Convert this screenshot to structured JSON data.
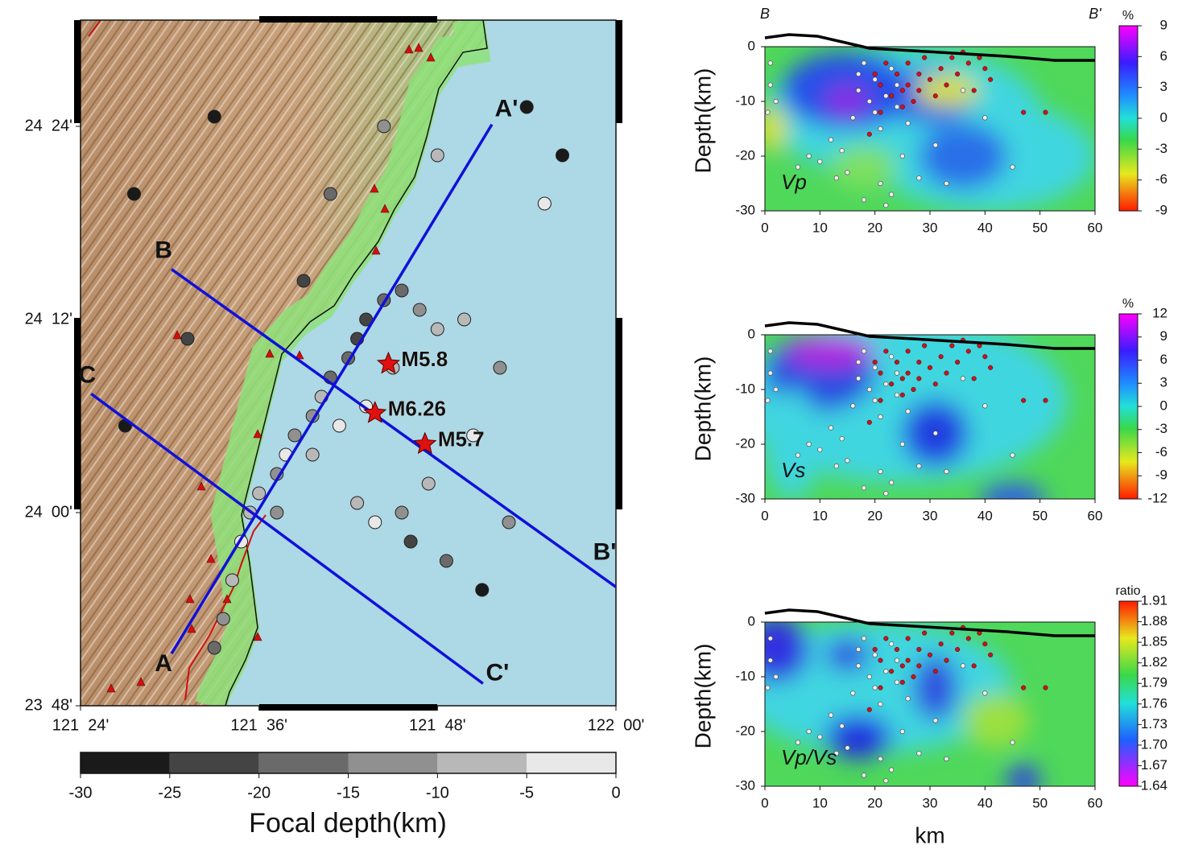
{
  "map": {
    "lonlim": [
      121.4,
      122.0
    ],
    "latlim": [
      23.8,
      24.51
    ],
    "lon_ticks": [
      {
        "value": 121.4,
        "label": "121  24'"
      },
      {
        "value": 121.6,
        "label": "121  36'"
      },
      {
        "value": 121.8,
        "label": "121  48'"
      },
      {
        "value": 122.0,
        "label": "122  00'"
      }
    ],
    "lat_ticks": [
      {
        "value": 24.4,
        "label": "24  24'"
      },
      {
        "value": 24.2,
        "label": "24  12'"
      },
      {
        "value": 24.0,
        "label": "24  00'"
      },
      {
        "value": 23.8,
        "label": "23  48'"
      }
    ],
    "profiles": [
      {
        "start_label": "A",
        "end_label": "A'",
        "start": [
          121.502,
          23.854
        ],
        "end": [
          121.861,
          24.402
        ]
      },
      {
        "start_label": "B",
        "end_label": "B'",
        "start": [
          121.502,
          24.252
        ],
        "end": [
          122.0,
          23.923
        ]
      },
      {
        "start_label": "C",
        "end_label": "C'",
        "start": [
          121.412,
          24.123
        ],
        "end": [
          121.851,
          23.823
        ]
      }
    ],
    "mainshocks": [
      {
        "label": "M5.8",
        "lon": 121.745,
        "lat": 24.154
      },
      {
        "label": "M6.26",
        "lon": 121.73,
        "lat": 24.103
      },
      {
        "label": "M5.7",
        "lon": 121.786,
        "lat": 24.071
      }
    ],
    "events": [
      [
        121.59,
        24.0,
        -5
      ],
      [
        121.6,
        24.02,
        -8
      ],
      [
        121.62,
        24.04,
        -12
      ],
      [
        121.63,
        24.06,
        -3
      ],
      [
        121.64,
        24.08,
        -10
      ],
      [
        121.66,
        24.1,
        -14
      ],
      [
        121.67,
        24.12,
        -7
      ],
      [
        121.68,
        24.14,
        -18
      ],
      [
        121.7,
        24.16,
        -16
      ],
      [
        121.71,
        24.18,
        -20
      ],
      [
        121.72,
        24.2,
        -22
      ],
      [
        121.74,
        24.22,
        -17
      ],
      [
        121.76,
        24.23,
        -15
      ],
      [
        121.78,
        24.21,
        -12
      ],
      [
        121.8,
        24.19,
        -8
      ],
      [
        121.83,
        24.2,
        -6
      ],
      [
        121.75,
        24.15,
        -9
      ],
      [
        121.72,
        24.11,
        -4
      ],
      [
        121.69,
        24.09,
        -2
      ],
      [
        121.66,
        24.06,
        -6
      ],
      [
        121.62,
        24.0,
        -11
      ],
      [
        121.58,
        23.97,
        -3
      ],
      [
        121.57,
        23.93,
        -9
      ],
      [
        121.56,
        23.89,
        -13
      ],
      [
        121.55,
        23.86,
        -19
      ],
      [
        121.71,
        24.01,
        -5
      ],
      [
        121.73,
        23.99,
        -2
      ],
      [
        121.76,
        24.0,
        -13
      ],
      [
        121.79,
        24.03,
        -8
      ],
      [
        121.77,
        23.97,
        -24
      ],
      [
        121.81,
        23.95,
        -16
      ],
      [
        121.85,
        23.92,
        -27
      ],
      [
        121.88,
        23.99,
        -14
      ],
      [
        121.84,
        24.08,
        -4
      ],
      [
        121.87,
        24.15,
        -11
      ],
      [
        121.65,
        24.24,
        -21
      ],
      [
        121.68,
        24.33,
        -18
      ],
      [
        121.74,
        24.4,
        -10
      ],
      [
        121.8,
        24.37,
        -6
      ],
      [
        121.9,
        24.42,
        -26
      ],
      [
        121.94,
        24.37,
        -28
      ],
      [
        121.92,
        24.32,
        -2
      ],
      [
        121.52,
        24.18,
        -23
      ],
      [
        121.45,
        24.09,
        -27
      ],
      [
        121.46,
        24.33,
        -29
      ],
      [
        121.55,
        24.41,
        -25
      ]
    ]
  },
  "depth_colorbar": {
    "title": "Focal depth(km)",
    "lim": [
      -30,
      0
    ],
    "ticks": [
      -30,
      -25,
      -20,
      -15,
      -10,
      -5,
      0
    ],
    "colors": [
      "#1a1a1a",
      "#444444",
      "#6a6a6a",
      "#909090",
      "#b8b8b8",
      "#e8e8e8"
    ]
  },
  "cross_sections": {
    "start_label": "B",
    "end_label": "B'",
    "xlabel": "km",
    "ylabel": "Depth(km)",
    "xlim": [
      0,
      60
    ],
    "ylim": [
      -30,
      0
    ],
    "xticks": [
      0,
      10,
      20,
      30,
      40,
      50,
      60
    ],
    "yticks": [
      0,
      -10,
      -20,
      -30
    ],
    "gray_events": [
      [
        1,
        -3
      ],
      [
        1,
        -7
      ],
      [
        2,
        -10
      ],
      [
        0.5,
        -12
      ],
      [
        6,
        -22
      ],
      [
        8,
        -20
      ],
      [
        10,
        -21
      ],
      [
        12,
        -17
      ],
      [
        13,
        -24
      ],
      [
        14,
        -19
      ],
      [
        15,
        -23
      ],
      [
        16,
        -13
      ],
      [
        17,
        -5
      ],
      [
        17,
        -8
      ],
      [
        18,
        -3
      ],
      [
        18,
        -28
      ],
      [
        19,
        -10
      ],
      [
        20,
        -6
      ],
      [
        20,
        -12
      ],
      [
        21,
        -15
      ],
      [
        21,
        -25
      ],
      [
        22,
        -9
      ],
      [
        22,
        -29
      ],
      [
        23,
        -4
      ],
      [
        23,
        -27
      ],
      [
        24,
        -7
      ],
      [
        24,
        -11
      ],
      [
        25,
        -20
      ],
      [
        26,
        -14
      ],
      [
        28,
        -24
      ],
      [
        31,
        -18
      ],
      [
        33,
        -25
      ],
      [
        36,
        -8
      ],
      [
        40,
        -13
      ],
      [
        45,
        -22
      ]
    ],
    "red_events": [
      [
        20,
        -5
      ],
      [
        21,
        -7
      ],
      [
        22,
        -3
      ],
      [
        23,
        -9
      ],
      [
        24,
        -5
      ],
      [
        25,
        -8
      ],
      [
        25,
        -11
      ],
      [
        26,
        -3
      ],
      [
        26,
        -7
      ],
      [
        27,
        -10
      ],
      [
        28,
        -5
      ],
      [
        28,
        -8
      ],
      [
        29,
        -2
      ],
      [
        30,
        -6
      ],
      [
        31,
        -9
      ],
      [
        32,
        -4
      ],
      [
        33,
        -7
      ],
      [
        34,
        -2
      ],
      [
        35,
        -5
      ],
      [
        36,
        -1
      ],
      [
        37,
        -3
      ],
      [
        38,
        -8
      ],
      [
        39,
        -2
      ],
      [
        40,
        -4
      ],
      [
        41,
        -6
      ],
      [
        47,
        -12
      ],
      [
        51,
        -12
      ],
      [
        21,
        -12
      ],
      [
        19,
        -16
      ]
    ],
    "panels": [
      {
        "label": "Vp",
        "unit": "%",
        "clim": [
          -9,
          9
        ],
        "cticks": [
          9,
          6,
          3,
          0,
          -3,
          -6,
          -9
        ]
      },
      {
        "label": "Vs",
        "unit": "%",
        "clim": [
          -12,
          12
        ],
        "cticks": [
          12,
          9,
          6,
          3,
          0,
          -3,
          -6,
          -9,
          -12
        ]
      },
      {
        "label": "Vp/Vs",
        "unit": "ratio",
        "clim": [
          1.64,
          1.91
        ],
        "cticks": [
          1.91,
          1.88,
          1.85,
          1.82,
          1.79,
          1.76,
          1.73,
          {
            "value": 1.7,
            "label": "1.70"
          },
          1.67,
          1.64
        ]
      }
    ]
  }
}
